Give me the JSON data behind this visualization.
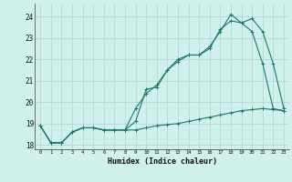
{
  "xlabel": "Humidex (Indice chaleur)",
  "bg_color": "#cff0eb",
  "line_color": "#1a7a6a",
  "grid_color": "#aed4cf",
  "xlim": [
    -0.5,
    23.5
  ],
  "ylim": [
    17.8,
    24.6
  ],
  "yticks": [
    18,
    19,
    20,
    21,
    22,
    23,
    24
  ],
  "xticks": [
    0,
    1,
    2,
    3,
    4,
    5,
    6,
    7,
    8,
    9,
    10,
    11,
    12,
    13,
    14,
    15,
    16,
    17,
    18,
    19,
    20,
    21,
    22,
    23
  ],
  "series1_x": [
    0,
    1,
    2,
    3,
    4,
    5,
    6,
    7,
    8,
    9,
    10,
    11,
    12,
    13,
    14,
    15,
    16,
    17,
    18,
    19,
    20,
    21,
    22,
    23
  ],
  "series1_y": [
    18.9,
    18.1,
    18.1,
    18.6,
    18.8,
    18.8,
    18.7,
    18.7,
    18.7,
    19.7,
    20.4,
    20.8,
    21.5,
    21.9,
    22.2,
    22.2,
    22.5,
    23.4,
    23.8,
    23.7,
    23.3,
    21.8,
    19.7,
    19.6
  ],
  "series2_x": [
    0,
    1,
    2,
    3,
    4,
    5,
    6,
    7,
    8,
    9,
    10,
    11,
    12,
    13,
    14,
    15,
    16,
    17,
    18,
    19,
    20,
    21,
    22,
    23
  ],
  "series2_y": [
    18.9,
    18.1,
    18.1,
    18.6,
    18.8,
    18.8,
    18.7,
    18.7,
    18.7,
    19.1,
    20.6,
    20.7,
    21.5,
    22.0,
    22.2,
    22.2,
    22.6,
    23.3,
    24.1,
    23.7,
    23.9,
    23.3,
    21.8,
    19.7
  ],
  "series3_x": [
    0,
    1,
    2,
    3,
    4,
    5,
    6,
    7,
    8,
    9,
    10,
    11,
    12,
    13,
    14,
    15,
    16,
    17,
    18,
    19,
    20,
    21,
    22,
    23
  ],
  "series3_y": [
    18.9,
    18.1,
    18.1,
    18.6,
    18.8,
    18.8,
    18.7,
    18.7,
    18.7,
    18.7,
    18.8,
    18.9,
    18.95,
    19.0,
    19.1,
    19.2,
    19.3,
    19.4,
    19.5,
    19.6,
    19.65,
    19.7,
    19.65,
    19.6
  ]
}
